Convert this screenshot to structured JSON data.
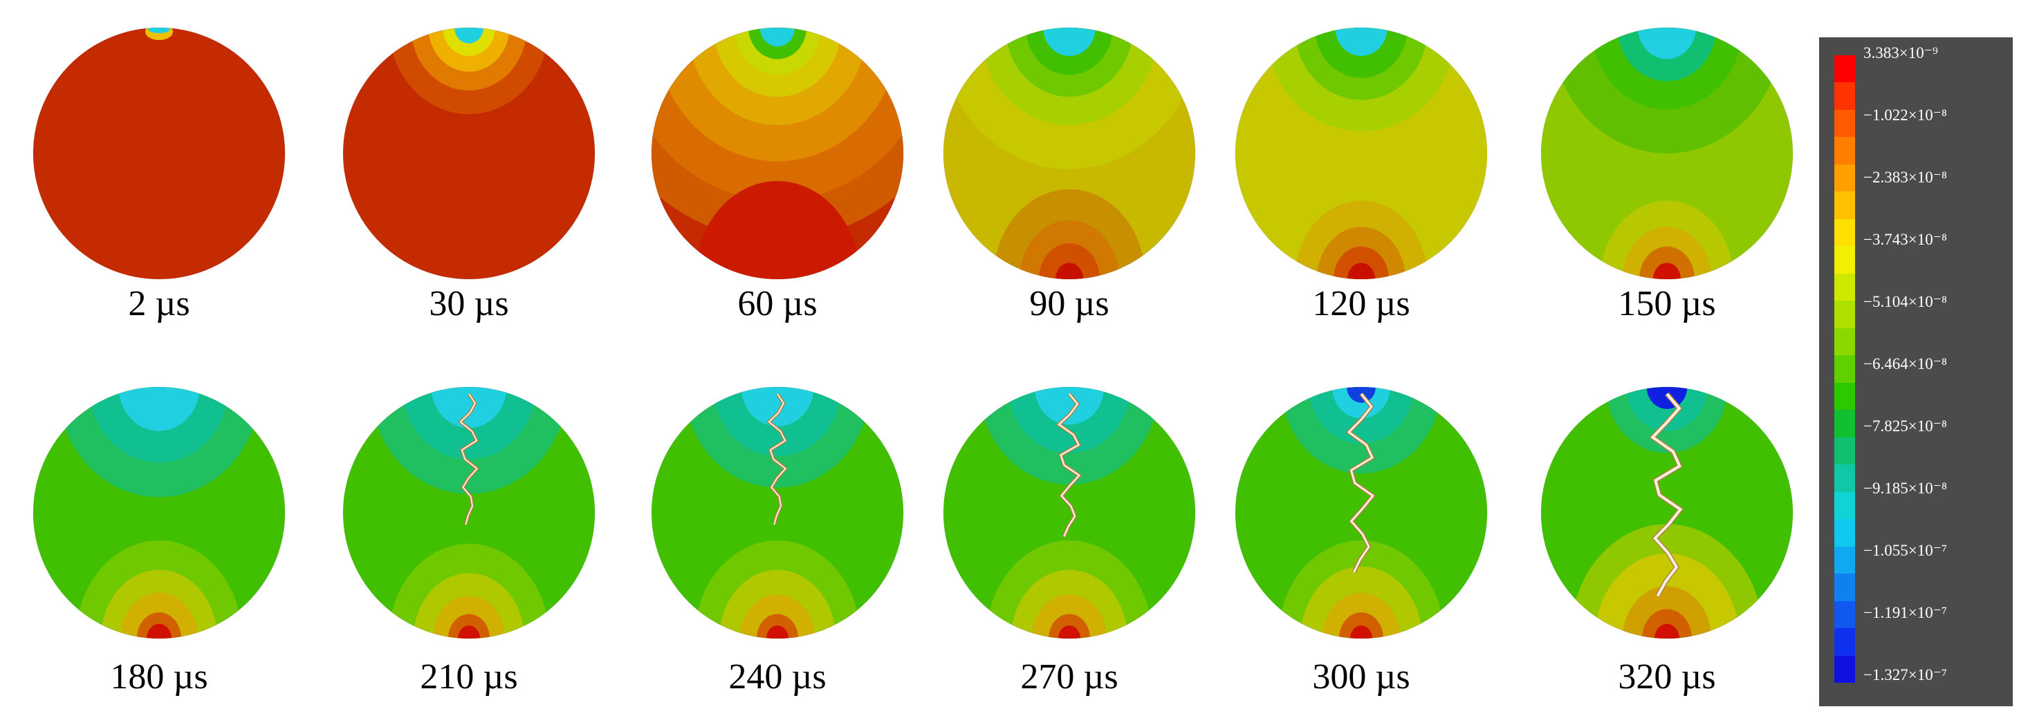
{
  "panels": [
    {
      "label": "2 µs"
    },
    {
      "label": "30 µs"
    },
    {
      "label": "60 µs"
    },
    {
      "label": "90 µs"
    },
    {
      "label": "120 µs"
    },
    {
      "label": "150 µs"
    },
    {
      "label": "180 µs"
    },
    {
      "label": "210 µs"
    },
    {
      "label": "240 µs"
    },
    {
      "label": "270 µs"
    },
    {
      "label": "300 µs"
    },
    {
      "label": "320 µs"
    }
  ],
  "legend": {
    "ticks": [
      "3.383×10⁻⁹",
      "−1.022×10⁻⁸",
      "−2.383×10⁻⁸",
      "−3.743×10⁻⁸",
      "−5.104×10⁻⁸",
      "−6.464×10⁻⁸",
      "−7.825×10⁻⁸",
      "−9.185×10⁻⁸",
      "−1.055×10⁻⁷",
      "−1.191×10⁻⁷",
      "−1.327×10⁻⁷"
    ],
    "colors": [
      "#ff0000",
      "#ff3300",
      "#ff5a00",
      "#ff7e00",
      "#ffa000",
      "#ffc000",
      "#ffe100",
      "#f2f000",
      "#d0e800",
      "#aee000",
      "#8ad800",
      "#5fd000",
      "#2ec800",
      "#10c030",
      "#10c070",
      "#10c8a8",
      "#10d4d4",
      "#10c8f0",
      "#10a8f0",
      "#1080f0",
      "#1058f0",
      "#1030f0",
      "#1010e0"
    ],
    "background": "#4b4b4b"
  },
  "field_colors": {
    "red_orange": "#c42b00",
    "yellow": "#c8c800",
    "green": "#40c000",
    "cyan": "#20d0e0",
    "blue": "#1020e0",
    "crack": "#f5f0e0"
  }
}
